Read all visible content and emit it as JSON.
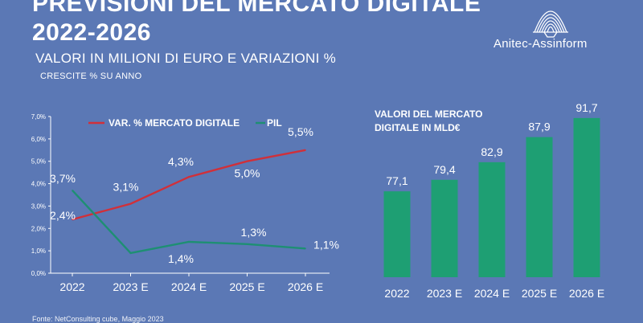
{
  "header": {
    "title_line1": "PREVISIONI DEL MERCATO DIGITALE",
    "title_line2": "2022-2026",
    "subtitle": "VALORI IN MILIONI DI EURO E VARIAZIONI %",
    "subsubtitle": "CRESCITE % SU ANNO"
  },
  "logo": {
    "text": "Anitec-Assinform",
    "icon": "shell-logo-icon"
  },
  "source": "Fonte: NetConsulting cube, Maggio 2023",
  "colors": {
    "background": "#5B78B5",
    "market_line": "#D0303A",
    "pil_line": "#1E8F73",
    "bars": "#1E9F73"
  },
  "chart_data": [
    {
      "type": "line",
      "x": [
        "2022",
        "2023 E",
        "2024 E",
        "2025 E",
        "2026 E"
      ],
      "series": [
        {
          "name": "VAR. % MERCATO DIGITALE",
          "values": [
            2.4,
            3.1,
            4.3,
            5.0,
            5.5
          ],
          "labels": [
            "2,4%",
            "3,1%",
            "4,3%",
            "5,0%",
            "5,5%"
          ]
        },
        {
          "name": "PIL",
          "values": [
            3.7,
            0.9,
            1.4,
            1.3,
            1.1
          ],
          "labels": [
            "3,7%",
            "",
            "1,4%",
            "1,3%",
            "1,1%"
          ]
        }
      ],
      "ylim": [
        0,
        7
      ],
      "yticks": [
        "0,0%",
        "1,0%",
        "2,0%",
        "3,0%",
        "4,0%",
        "5,0%",
        "6,0%",
        "7,0%"
      ],
      "grid": false,
      "legend": "top"
    },
    {
      "type": "bar",
      "title": "VALORI DEL MERCATO DIGITALE IN MLD€",
      "title_lines": [
        "VALORI DEL MERCATO",
        "DIGITALE IN MLD€"
      ],
      "categories": [
        "2022",
        "2023 E",
        "2024 E",
        "2025 E",
        "2026 E"
      ],
      "values": [
        77.1,
        79.4,
        82.9,
        87.9,
        91.7
      ],
      "labels": [
        "77,1",
        "79,4",
        "82,9",
        "87,9",
        "91,7"
      ],
      "ylim": [
        60,
        92
      ]
    }
  ]
}
